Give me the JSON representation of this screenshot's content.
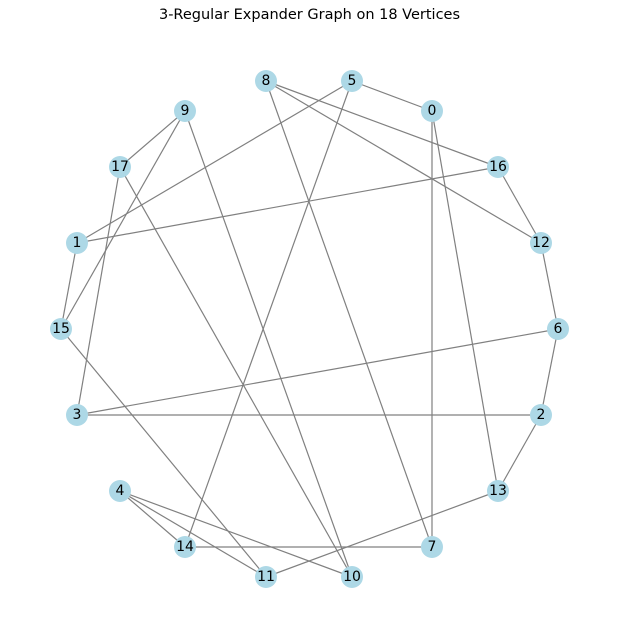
{
  "title": "3-Regular Expander Graph on 18 Vertices",
  "colors": {
    "node_fill": "#add8e6",
    "edge_stroke": "#808080",
    "label": "#000000",
    "background": "#ffffff"
  },
  "graph": {
    "nodes": [
      {
        "id": "0",
        "label": "0"
      },
      {
        "id": "1",
        "label": "1"
      },
      {
        "id": "2",
        "label": "2"
      },
      {
        "id": "3",
        "label": "3"
      },
      {
        "id": "4",
        "label": "4"
      },
      {
        "id": "5",
        "label": "5"
      },
      {
        "id": "6",
        "label": "6"
      },
      {
        "id": "7",
        "label": "7"
      },
      {
        "id": "8",
        "label": "8"
      },
      {
        "id": "9",
        "label": "9"
      },
      {
        "id": "10",
        "label": "10"
      },
      {
        "id": "11",
        "label": "11"
      },
      {
        "id": "12",
        "label": "12"
      },
      {
        "id": "13",
        "label": "13"
      },
      {
        "id": "14",
        "label": "14"
      },
      {
        "id": "15",
        "label": "15"
      },
      {
        "id": "16",
        "label": "16"
      },
      {
        "id": "17",
        "label": "17"
      }
    ],
    "edges": [
      [
        "0",
        "5"
      ],
      [
        "0",
        "7"
      ],
      [
        "0",
        "13"
      ],
      [
        "1",
        "5"
      ],
      [
        "1",
        "16"
      ],
      [
        "1",
        "15"
      ],
      [
        "2",
        "6"
      ],
      [
        "2",
        "3"
      ],
      [
        "2",
        "13"
      ],
      [
        "3",
        "17"
      ],
      [
        "3",
        "6"
      ],
      [
        "4",
        "14"
      ],
      [
        "4",
        "11"
      ],
      [
        "4",
        "10"
      ],
      [
        "5",
        "14"
      ],
      [
        "6",
        "12"
      ],
      [
        "7",
        "8"
      ],
      [
        "7",
        "14"
      ],
      [
        "8",
        "16"
      ],
      [
        "8",
        "12"
      ],
      [
        "9",
        "17"
      ],
      [
        "9",
        "15"
      ],
      [
        "9",
        "10"
      ],
      [
        "10",
        "17"
      ],
      [
        "11",
        "15"
      ],
      [
        "11",
        "13"
      ],
      [
        "12",
        "16"
      ]
    ]
  }
}
